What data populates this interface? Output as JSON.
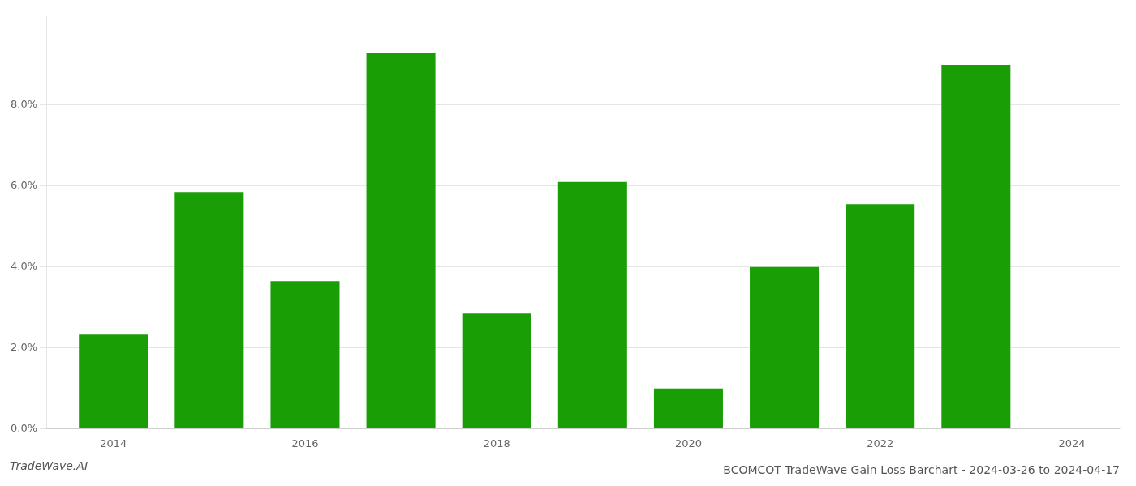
{
  "chart_data": {
    "type": "bar",
    "title": "BCOMCOT TradeWave Gain Loss Barchart - 2024-03-26 to 2024-04-17",
    "annotations": [
      "TradeWave.AI"
    ],
    "x": [
      2014,
      2015,
      2016,
      2017,
      2018,
      2019,
      2020,
      2021,
      2022,
      2023
    ],
    "values": [
      0.0235,
      0.0585,
      0.0365,
      0.093,
      0.0285,
      0.061,
      0.01,
      0.04,
      0.0555,
      0.09
    ],
    "color": "#1a9e06",
    "xlim": [
      2013.3,
      2024.5
    ],
    "xticks": [
      2014,
      2016,
      2018,
      2020,
      2022,
      2024
    ],
    "ylim": [
      0.0,
      0.102
    ],
    "yticks": [
      {
        "value": 0.0,
        "label": "0.0%"
      },
      {
        "value": 0.02,
        "label": "2.0%"
      },
      {
        "value": 0.04,
        "label": "4.0%"
      },
      {
        "value": 0.06,
        "label": "6.0%"
      },
      {
        "value": 0.08,
        "label": "8.0%"
      }
    ],
    "grid": true
  }
}
